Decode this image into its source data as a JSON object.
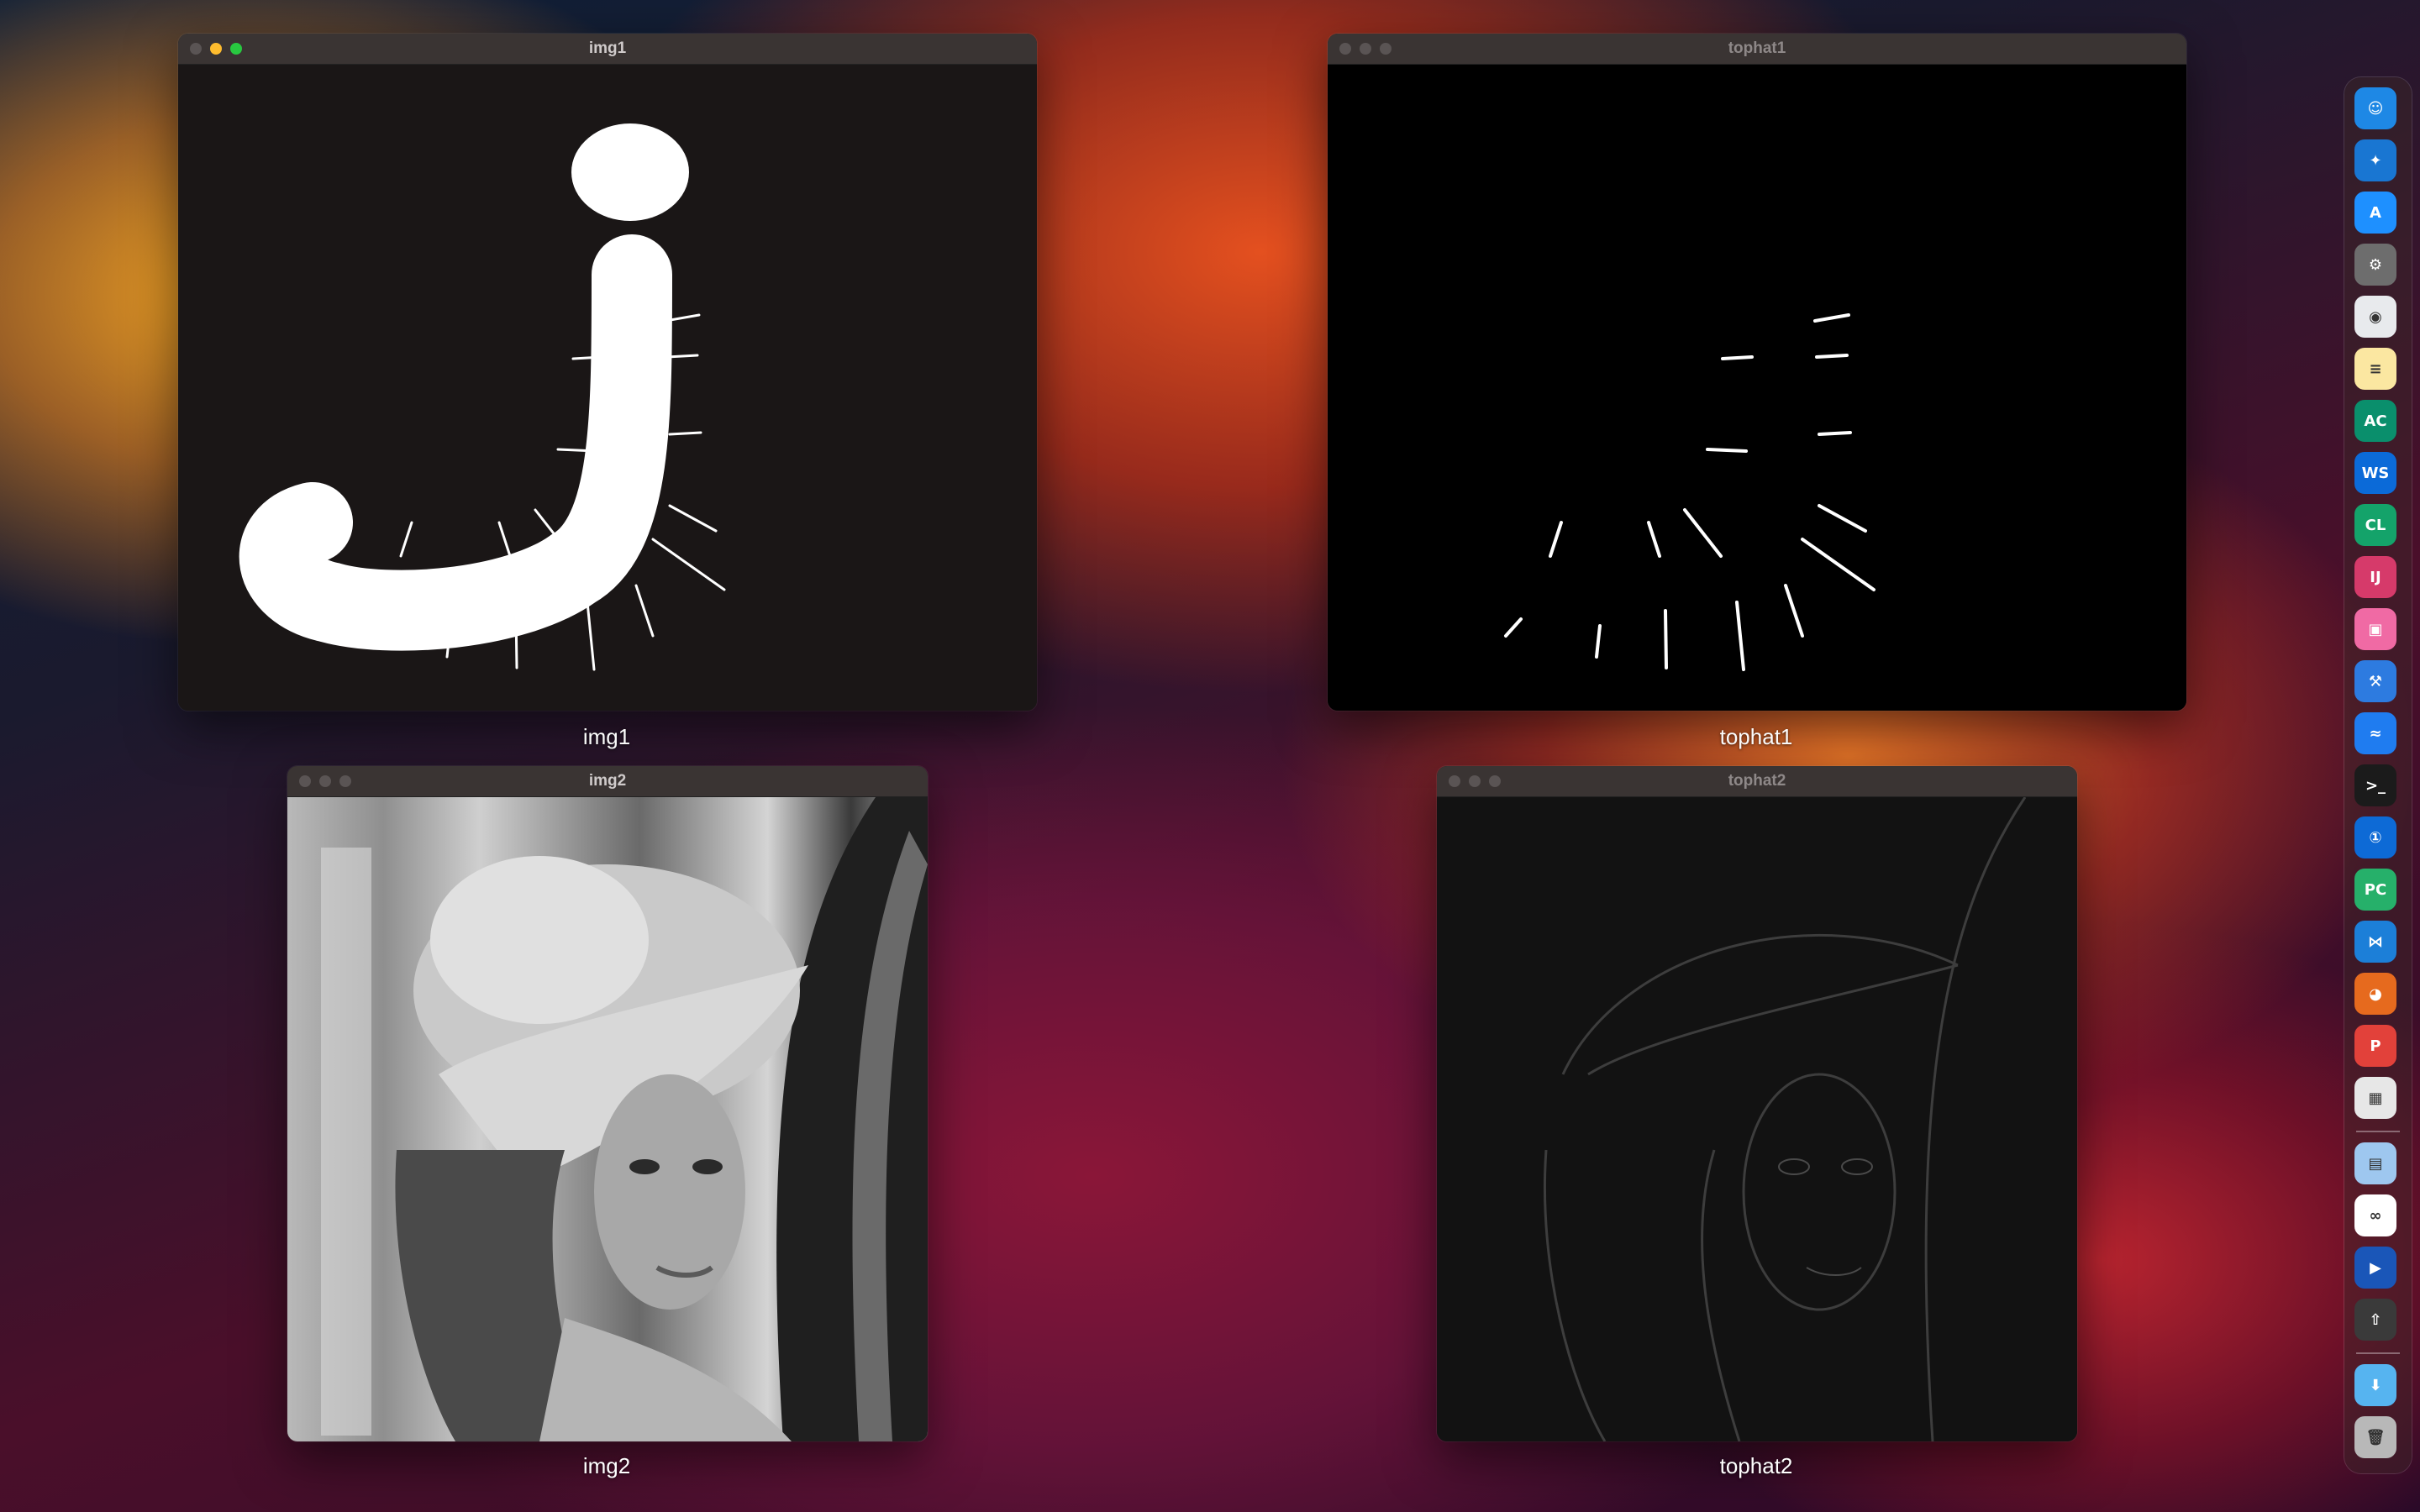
{
  "windows": {
    "img1": {
      "title": "img1",
      "caption": "img1"
    },
    "tophat1": {
      "title": "tophat1",
      "caption": "tophat1"
    },
    "img2": {
      "title": "img2",
      "caption": "img2"
    },
    "tophat2": {
      "title": "tophat2",
      "caption": "tophat2"
    }
  },
  "dock": {
    "items": [
      {
        "name": "finder-icon",
        "label": "☺",
        "color": "#1e88e5"
      },
      {
        "name": "safari-icon",
        "label": "✦",
        "color": "#1976d2"
      },
      {
        "name": "app-store-icon",
        "label": "A",
        "color": "#1e90ff"
      },
      {
        "name": "system-settings-icon",
        "label": "⚙",
        "color": "#6d6d6d"
      },
      {
        "name": "chrome-icon",
        "label": "◉",
        "color": "#e8eaed"
      },
      {
        "name": "notes-icon",
        "label": "≡",
        "color": "#fbe7a1"
      },
      {
        "name": "appcode-icon",
        "label": "AC",
        "color": "#0a8f6c"
      },
      {
        "name": "webstorm-icon",
        "label": "WS",
        "color": "#0b6ad8"
      },
      {
        "name": "clion-icon",
        "label": "CL",
        "color": "#14a36a"
      },
      {
        "name": "intellij-icon",
        "label": "IJ",
        "color": "#d63a6a"
      },
      {
        "name": "cleanmymac-icon",
        "label": "▣",
        "color": "#f06aa4"
      },
      {
        "name": "xcode-icon",
        "label": "⚒",
        "color": "#2d7be0"
      },
      {
        "name": "tencent-meeting-icon",
        "label": "≈",
        "color": "#1f7cf0"
      },
      {
        "name": "terminal-icon",
        "label": ">_",
        "color": "#1b1b1b"
      },
      {
        "name": "1password-icon",
        "label": "①",
        "color": "#0d6ad6"
      },
      {
        "name": "pycharm-icon",
        "label": "PC",
        "color": "#26b06a"
      },
      {
        "name": "vscode-icon",
        "label": "⋈",
        "color": "#1c7fd8"
      },
      {
        "name": "firefox-icon",
        "label": "◕",
        "color": "#e66a1e"
      },
      {
        "name": "pdf-expert-icon",
        "label": "P",
        "color": "#e2413a"
      },
      {
        "name": "launchpad-icon",
        "label": "▦",
        "color": "#e7e7e7"
      },
      {
        "name": "preview-icon",
        "label": "▤",
        "color": "#9ec7ef"
      },
      {
        "name": "baidu-netdisk-icon",
        "label": "∞",
        "color": "#ffffff"
      },
      {
        "name": "infuse-icon",
        "label": "▶",
        "color": "#1a56b8"
      },
      {
        "name": "rocket-icon",
        "label": "⇧",
        "color": "#3a3a3a"
      },
      {
        "name": "downloads-folder-icon",
        "label": "⬇",
        "color": "#56b4f0"
      },
      {
        "name": "trash-icon",
        "label": "🗑",
        "color": "#b8b8b8"
      }
    ]
  }
}
